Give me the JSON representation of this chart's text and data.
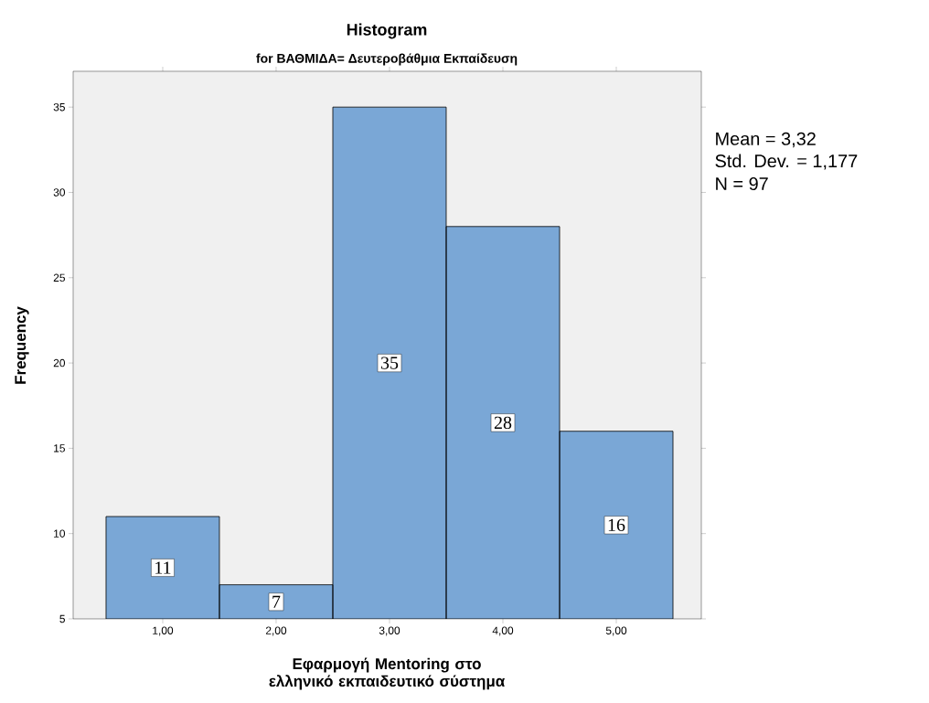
{
  "chart_data": {
    "type": "histogram",
    "title": "Histogram",
    "subtitle": "for ΒΑΘΜΙΔΑ= Δευτεροβάθμια Εκπαίδευση",
    "xlabel": "Εφαρμογή Mentoring στο ελληνικό εκπαιδευτικό σύστημα",
    "ylabel": "Frequency",
    "bins": [
      0.5,
      1.5,
      2.5,
      3.5,
      4.5,
      5.5
    ],
    "values": [
      11,
      7,
      35,
      28,
      16
    ],
    "color": "#7aa7d6",
    "xlim": [
      0.21,
      5.75
    ],
    "ylim": [
      5,
      37.1
    ],
    "xticks": [
      {
        "value": 1,
        "label": "1,00"
      },
      {
        "value": 2,
        "label": "2,00"
      },
      {
        "value": 3,
        "label": "3,00"
      },
      {
        "value": 4,
        "label": "4,00"
      },
      {
        "value": 5,
        "label": "5,00"
      }
    ],
    "yticks": [
      5,
      10,
      15,
      20,
      25,
      30,
      35
    ],
    "data_labels": true,
    "grid": false,
    "annotations": [
      "Mean = 3,32",
      "Std. Dev. = 1,177",
      "N = 97"
    ]
  }
}
